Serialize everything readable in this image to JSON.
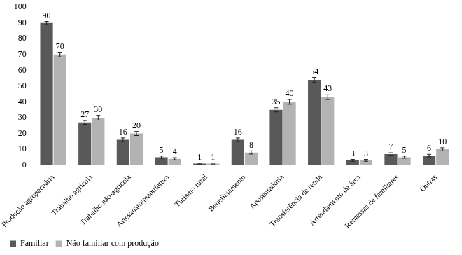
{
  "chart_data": {
    "type": "bar",
    "categories": [
      "Produção agropecuária",
      "Trabalho agrícola",
      "Trabalho não-agrícola",
      "Artesanato/manufatura",
      "Turismo rural",
      "Beneficiamento",
      "Aposentadoria",
      "Transferência de renda",
      "Arrendamento de área",
      "Remessas de familiares",
      "Outras"
    ],
    "series": [
      {
        "name": "Familiar",
        "color": "#595959",
        "values": [
          90,
          27,
          16,
          5,
          1,
          16,
          35,
          54,
          3,
          7,
          6
        ],
        "errors": [
          1,
          1.2,
          1.2,
          0.7,
          0.3,
          1.2,
          1.3,
          1.5,
          0.6,
          0.8,
          0.8
        ]
      },
      {
        "name": "Não familiar com produção",
        "color": "#b3b3b3",
        "values": [
          70,
          30,
          20,
          4,
          1,
          8,
          40,
          43,
          3,
          5,
          10
        ],
        "errors": [
          1.5,
          1.5,
          1.3,
          0.7,
          0.3,
          1,
          1.5,
          1.5,
          0.6,
          0.7,
          1
        ]
      }
    ],
    "ylim": [
      0,
      100
    ],
    "yticks": [
      0,
      10,
      20,
      30,
      40,
      50,
      60,
      70,
      80,
      90,
      100
    ],
    "grid": false,
    "legend": "bottom",
    "data_labels": true
  }
}
